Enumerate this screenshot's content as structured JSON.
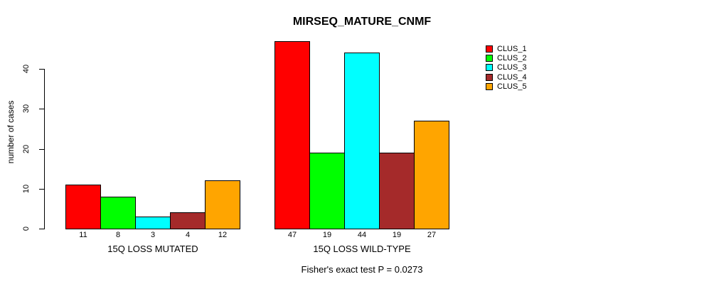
{
  "chart_data": {
    "type": "bar",
    "title": "MIRSEQ_MATURE_CNMF",
    "xlabel": "",
    "ylabel": "number of cases",
    "categories": [
      "15Q LOSS MUTATED",
      "15Q LOSS WILD-TYPE"
    ],
    "series": [
      {
        "name": "CLUS_1",
        "color": "#FF0000",
        "values": [
          11,
          47
        ]
      },
      {
        "name": "CLUS_2",
        "color": "#00FF00",
        "values": [
          8,
          19
        ]
      },
      {
        "name": "CLUS_3",
        "color": "#00FFFF",
        "values": [
          3,
          44
        ]
      },
      {
        "name": "CLUS_4",
        "color": "#A52A2A",
        "values": [
          4,
          19
        ]
      },
      {
        "name": "CLUS_5",
        "color": "#FFA500",
        "values": [
          12,
          27
        ]
      }
    ],
    "yticks": [
      0,
      10,
      20,
      30,
      40
    ],
    "ylim": [
      0,
      47
    ],
    "bar_value_labels": true,
    "annotation": "Fisher's exact test P = 0.0273",
    "legend_position": "top-right",
    "grid": false,
    "background_color": "#FFFFFF",
    "axis_color": "#000000",
    "text_color": "#000000"
  }
}
